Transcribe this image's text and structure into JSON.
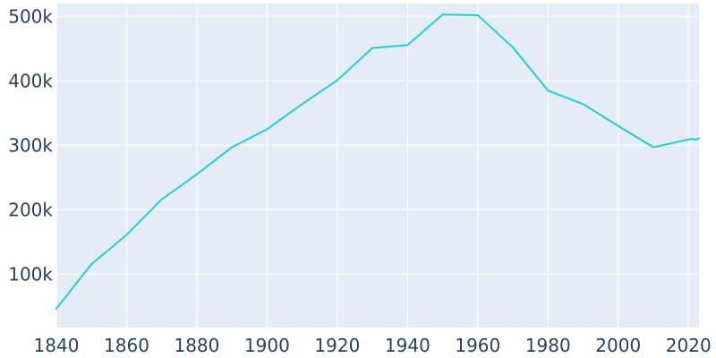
{
  "chart_data": {
    "type": "line",
    "title": "",
    "xlabel": "",
    "ylabel": "",
    "xlim": [
      1840,
      2023
    ],
    "ylim": [
      17000,
      520000
    ],
    "x_ticks": [
      1840,
      1860,
      1880,
      1900,
      1920,
      1940,
      1960,
      1980,
      2000,
      2020
    ],
    "x_tick_labels": [
      "1840",
      "1860",
      "1880",
      "1900",
      "1920",
      "1940",
      "1960",
      "1980",
      "2000",
      "2020"
    ],
    "y_ticks": [
      100000,
      200000,
      300000,
      400000,
      500000
    ],
    "y_tick_labels": [
      "100k",
      "200k",
      "300k",
      "400k",
      "500k"
    ],
    "grid": true,
    "legend": "none",
    "colors": {
      "plot_background": "#e5ecf6",
      "grid": "#ffffff",
      "line": "#17d4d4",
      "tick_text": "#2a3f5f"
    },
    "series": [
      {
        "x": [
          1840,
          1850,
          1860,
          1870,
          1880,
          1890,
          1900,
          1910,
          1920,
          1930,
          1940,
          1950,
          1960,
          1970,
          1980,
          1990,
          2000,
          2010,
          2020,
          2021,
          2022,
          2023
        ],
        "values": [
          46400,
          115400,
          161000,
          216000,
          255000,
          297000,
          325000,
          364000,
          401000,
          451000,
          455500,
          503000,
          502000,
          452000,
          385000,
          364000,
          330000,
          297000,
          309000,
          310000,
          308500,
          311000
        ]
      }
    ]
  }
}
